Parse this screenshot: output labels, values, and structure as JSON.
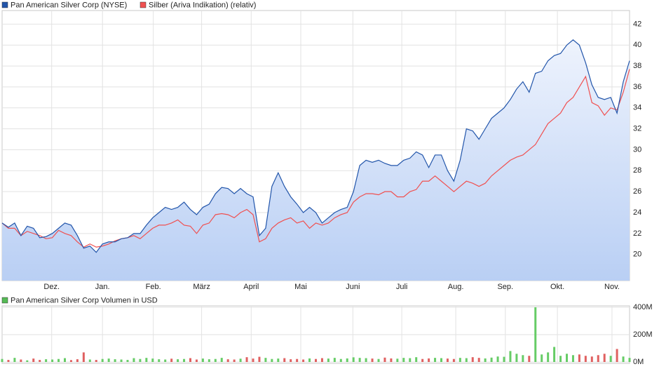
{
  "chart_data": [
    {
      "type": "line",
      "x": [
        0,
        1,
        2,
        3,
        4,
        5,
        6,
        7,
        8,
        9,
        10,
        11,
        12,
        13,
        14,
        15,
        16,
        17,
        18,
        19,
        20,
        21,
        22,
        23,
        24,
        25,
        26,
        27,
        28,
        29,
        30,
        31,
        32,
        33,
        34,
        35,
        36,
        37,
        38,
        39,
        40,
        41,
        42,
        43,
        44,
        45,
        46,
        47,
        48,
        49,
        50,
        51,
        52,
        53,
        54,
        55,
        56,
        57,
        58,
        59,
        60,
        61,
        62,
        63,
        64,
        65,
        66,
        67,
        68,
        69,
        70,
        71,
        72,
        73,
        74,
        75,
        76,
        77,
        78,
        79,
        80,
        81,
        82,
        83,
        84,
        85,
        86,
        87,
        88,
        89,
        90,
        91,
        92,
        93,
        94,
        95,
        96,
        97,
        98,
        99,
        100
      ],
      "xlim": [
        0,
        100
      ],
      "xticks": [
        {
          "value": 7.9,
          "label": "Dez."
        },
        {
          "value": 16,
          "label": "Jan."
        },
        {
          "value": 24.1,
          "label": "Feb."
        },
        {
          "value": 31.8,
          "label": "März"
        },
        {
          "value": 39.7,
          "label": "April"
        },
        {
          "value": 47.6,
          "label": "Mai"
        },
        {
          "value": 55.9,
          "label": "Juni"
        },
        {
          "value": 63.7,
          "label": "Juli"
        },
        {
          "value": 72.3,
          "label": "Aug."
        },
        {
          "value": 80.2,
          "label": "Sep."
        },
        {
          "value": 88.5,
          "label": "Okt."
        },
        {
          "value": 97.2,
          "label": "Nov."
        }
      ],
      "ylim": [
        17.5,
        43.3
      ],
      "yticks": [
        20,
        22,
        24,
        26,
        28,
        30,
        32,
        34,
        36,
        38,
        40,
        42
      ],
      "grid": true,
      "series": [
        {
          "name": "Pan American Silver Corp (NYSE)",
          "color": "#2255aa",
          "area": true,
          "values": [
            23.0,
            22.6,
            23.0,
            21.8,
            22.7,
            22.5,
            21.6,
            21.7,
            22.0,
            22.5,
            23.0,
            22.8,
            21.8,
            20.6,
            20.8,
            20.2,
            21.0,
            21.2,
            21.2,
            21.5,
            21.6,
            22.0,
            22.0,
            22.8,
            23.5,
            24.0,
            24.5,
            24.3,
            24.5,
            25.0,
            24.3,
            23.8,
            24.5,
            24.8,
            25.8,
            26.4,
            26.3,
            25.8,
            26.3,
            25.8,
            25.5,
            21.8,
            22.5,
            26.5,
            27.8,
            26.5,
            25.5,
            24.8,
            24.0,
            24.5,
            24.0,
            23.0,
            23.5,
            24.0,
            24.3,
            24.5,
            26.0,
            28.5,
            29.0,
            28.8,
            29.0,
            28.7,
            28.5,
            28.5,
            29.0,
            29.2,
            29.8,
            29.5,
            28.3,
            29.5,
            29.5,
            28.0,
            27.0,
            29.0,
            32.0,
            31.8,
            31.0,
            32.0,
            33.0,
            33.5,
            34.0,
            34.8,
            35.8,
            36.5,
            35.5,
            37.3,
            37.5,
            38.5,
            39.0,
            39.2,
            40.0,
            40.5,
            40.0,
            38.3,
            36.2,
            35.0,
            34.8,
            35.0,
            33.5,
            36.5,
            38.5
          ]
        },
        {
          "name": "Silber (Ariva Indikation) (relativ)",
          "color": "#f05050",
          "area": false,
          "values": [
            23.0,
            22.5,
            22.5,
            21.8,
            22.2,
            22.0,
            21.8,
            21.5,
            21.6,
            22.3,
            22.0,
            21.8,
            21.2,
            20.7,
            21.0,
            20.7,
            20.8,
            21.0,
            21.3,
            21.5,
            21.6,
            21.8,
            21.5,
            22.0,
            22.5,
            22.8,
            22.8,
            23.0,
            23.3,
            22.8,
            22.7,
            22.0,
            22.8,
            23.0,
            23.8,
            23.9,
            23.8,
            23.5,
            24.0,
            24.3,
            23.8,
            21.2,
            21.5,
            22.5,
            23.0,
            23.3,
            23.5,
            23.0,
            23.2,
            22.5,
            23.0,
            22.8,
            23.0,
            23.5,
            23.8,
            24.0,
            25.0,
            25.5,
            25.8,
            25.8,
            25.7,
            26.0,
            26.0,
            25.5,
            25.5,
            26.0,
            26.2,
            27.0,
            27.0,
            27.5,
            27.0,
            26.5,
            26.0,
            26.5,
            27.0,
            26.8,
            26.5,
            26.8,
            27.5,
            28.0,
            28.5,
            29.0,
            29.3,
            29.5,
            30.0,
            30.5,
            31.5,
            32.5,
            33.0,
            33.5,
            34.5,
            35.0,
            36.0,
            37.0,
            34.5,
            34.2,
            33.3,
            34.0,
            33.8,
            35.5,
            37.7
          ]
        }
      ]
    },
    {
      "type": "bar",
      "series": [
        {
          "name": "Pan American Silver Corp Volumen in USD",
          "color": "#55bb55",
          "values": [
            22,
            15,
            30,
            18,
            12,
            25,
            15,
            20,
            18,
            22,
            28,
            14,
            20,
            70,
            18,
            15,
            22,
            25,
            20,
            18,
            15,
            28,
            22,
            30,
            25,
            20,
            18,
            24,
            20,
            22,
            28,
            18,
            25,
            20,
            22,
            30,
            20,
            18,
            24,
            35,
            25,
            38,
            30,
            22,
            25,
            28,
            20,
            22,
            18,
            26,
            22,
            28,
            25,
            30,
            22,
            26,
            34,
            30,
            28,
            25,
            22,
            32,
            26,
            24,
            30,
            28,
            35,
            22,
            26,
            30,
            28,
            25,
            22,
            30,
            28,
            35,
            30,
            26,
            32,
            40,
            38,
            80,
            60,
            50,
            45,
            400,
            55,
            70,
            110,
            45,
            60,
            50,
            55,
            45,
            40,
            50,
            60,
            45,
            95,
            40,
            30
          ]
        }
      ],
      "up_color": "#66cc66",
      "down_color": "#e06060",
      "ylim": [
        0,
        410
      ],
      "yticks": [
        {
          "value": 0,
          "label": "0M"
        },
        {
          "value": 200,
          "label": "200M"
        },
        {
          "value": 400,
          "label": "400M"
        }
      ],
      "grid": true
    }
  ]
}
